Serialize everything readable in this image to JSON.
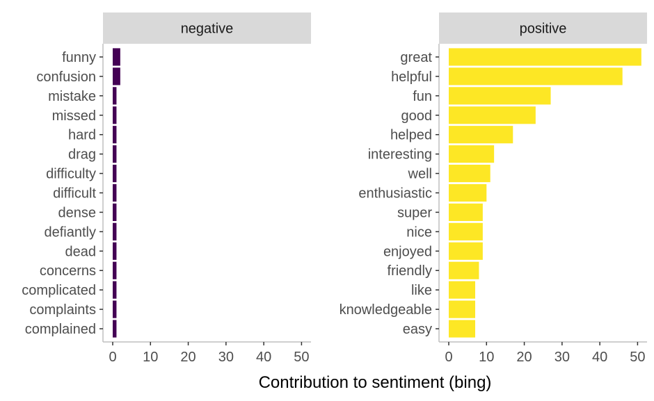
{
  "chart_data": {
    "type": "bar",
    "orientation": "horizontal",
    "facets": [
      {
        "name": "negative",
        "color": "#440154",
        "categories": [
          "funny",
          "confusion",
          "mistake",
          "missed",
          "hard",
          "drag",
          "difficulty",
          "difficult",
          "dense",
          "defiantly",
          "dead",
          "concerns",
          "complicated",
          "complaints",
          "complained"
        ],
        "values": [
          2,
          2,
          1,
          1,
          1,
          1,
          1,
          1,
          1,
          1,
          1,
          1,
          1,
          1,
          1
        ]
      },
      {
        "name": "positive",
        "color": "#FDE725",
        "categories": [
          "great",
          "helpful",
          "fun",
          "good",
          "helped",
          "interesting",
          "well",
          "enthusiastic",
          "super",
          "nice",
          "enjoyed",
          "friendly",
          "like",
          "knowledgeable",
          "easy"
        ],
        "values": [
          51,
          46,
          27,
          23,
          17,
          12,
          11,
          10,
          9,
          9,
          9,
          8,
          7,
          7,
          7
        ]
      }
    ],
    "xlabel": "Contribution to sentiment (bing)",
    "ylabel": "",
    "xlim": [
      0,
      51
    ],
    "x_ticks": [
      0,
      10,
      20,
      30,
      40,
      50
    ],
    "grid": false,
    "strip_color": "#D9D9D9",
    "axis_color": "#BFBFBF"
  }
}
